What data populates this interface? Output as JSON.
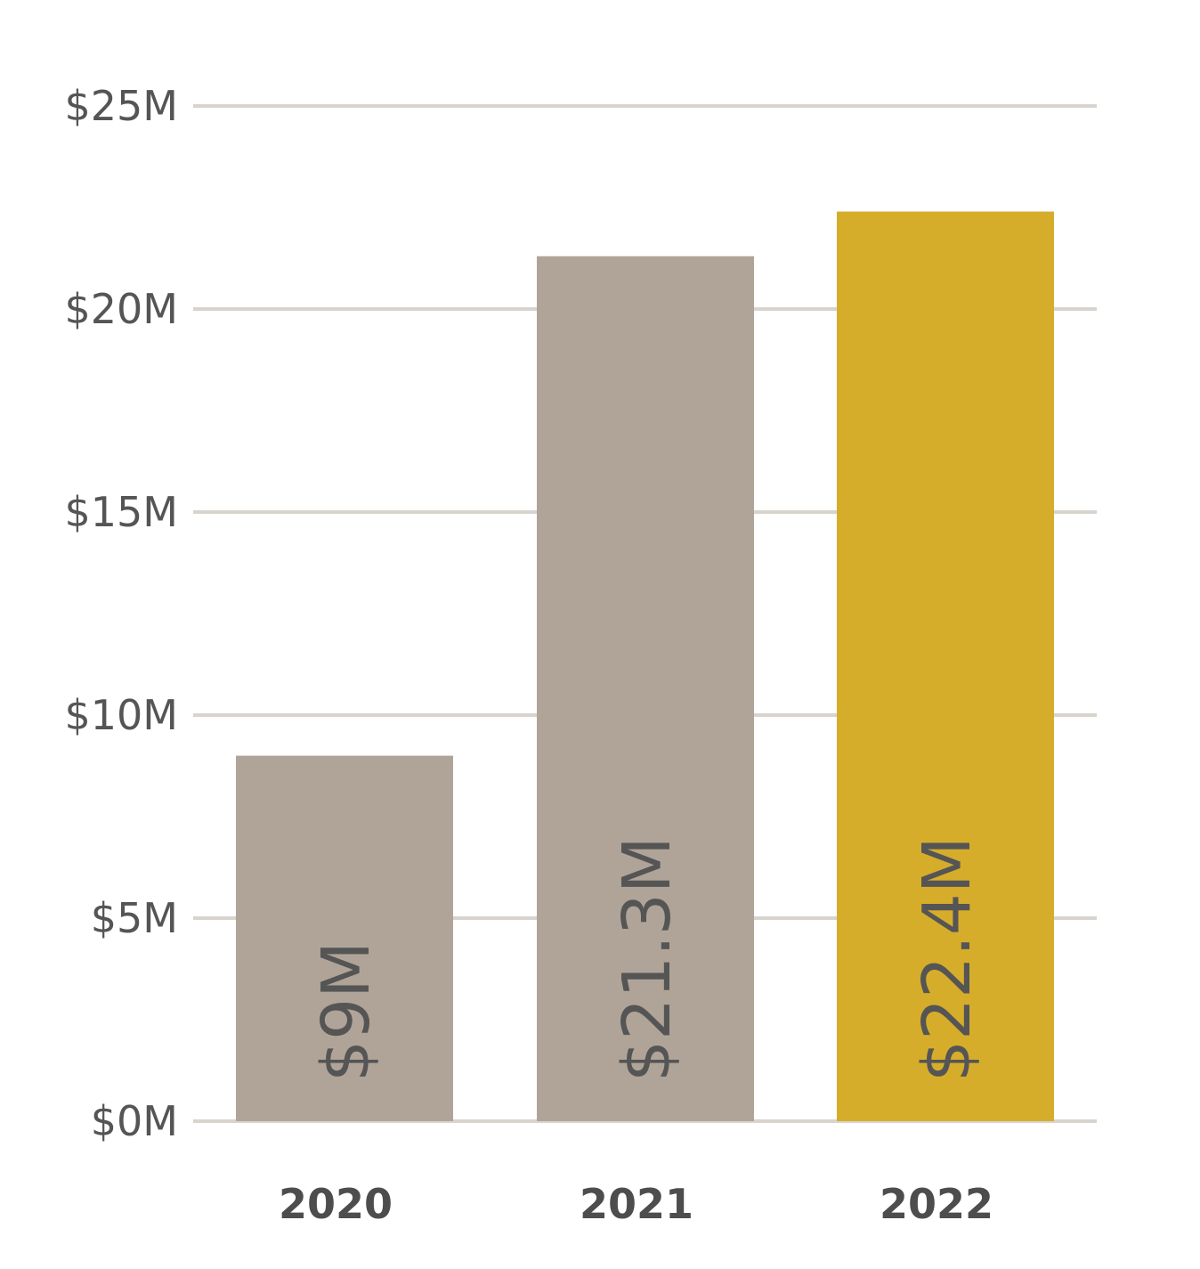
{
  "chart_data": {
    "type": "bar",
    "title": "",
    "xlabel": "",
    "ylabel": "",
    "categories": [
      "2020",
      "2021",
      "2022"
    ],
    "values": [
      9,
      21.3,
      22.4
    ],
    "value_labels": [
      "$9M",
      "$21.3M",
      "$22.4M"
    ],
    "bar_colors": [
      "#b0a498",
      "#b0a498",
      "#d6ad2a"
    ],
    "ylim": [
      0,
      25
    ],
    "yticks": [
      0,
      5,
      10,
      15,
      20,
      25
    ],
    "ytick_labels": [
      "$0M",
      "$5M",
      "$10M",
      "$15M",
      "$20M",
      "$25M"
    ],
    "grid": true,
    "grid_color": "#d9d3cd",
    "legend": "none"
  }
}
